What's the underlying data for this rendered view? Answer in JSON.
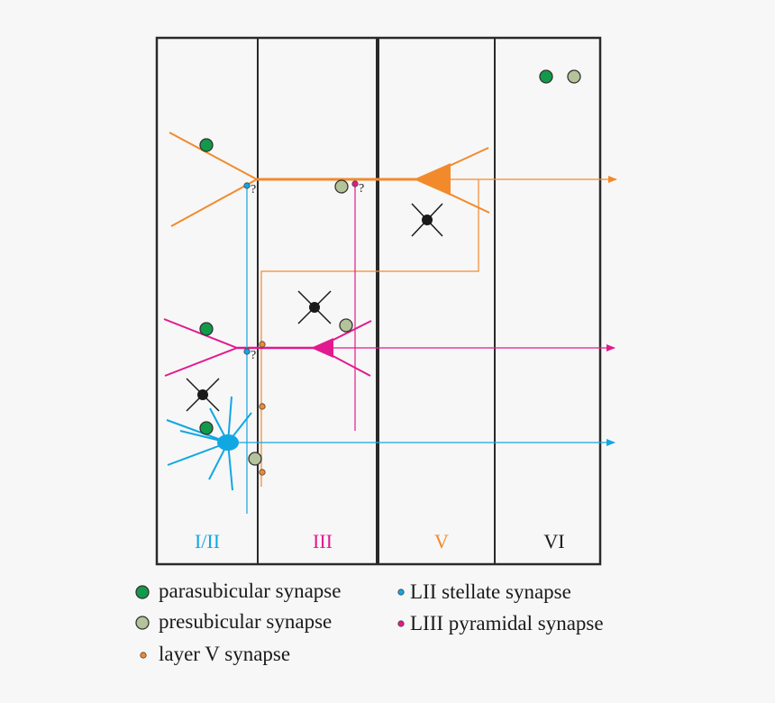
{
  "colors": {
    "background": "#f7f7f7",
    "border": "#2a2a2a",
    "layer_v_orange": "#f28a2c",
    "liii_magenta": "#e2198f",
    "lii_blue": "#11a7e3",
    "parasubicular_green": "#109a4a",
    "presubicular_sage": "#b4c39a",
    "interneuron_black": "#1a1a1a"
  },
  "layers": [
    {
      "label": "I/II",
      "color": "#11a7e3"
    },
    {
      "label": "III",
      "color": "#e2198f"
    },
    {
      "label": "V",
      "color": "#f28a2c"
    },
    {
      "label": "VI",
      "color": "#1a1a1a"
    }
  ],
  "question_mark": "?",
  "legend": {
    "parasubicular": "parasubicular synapse",
    "presubicular": "presubicular synapse",
    "layer_v": "layer V synapse",
    "lii_stellate": "LII stellate synapse",
    "liii_pyramidal": "LIII pyramidal synapse"
  }
}
